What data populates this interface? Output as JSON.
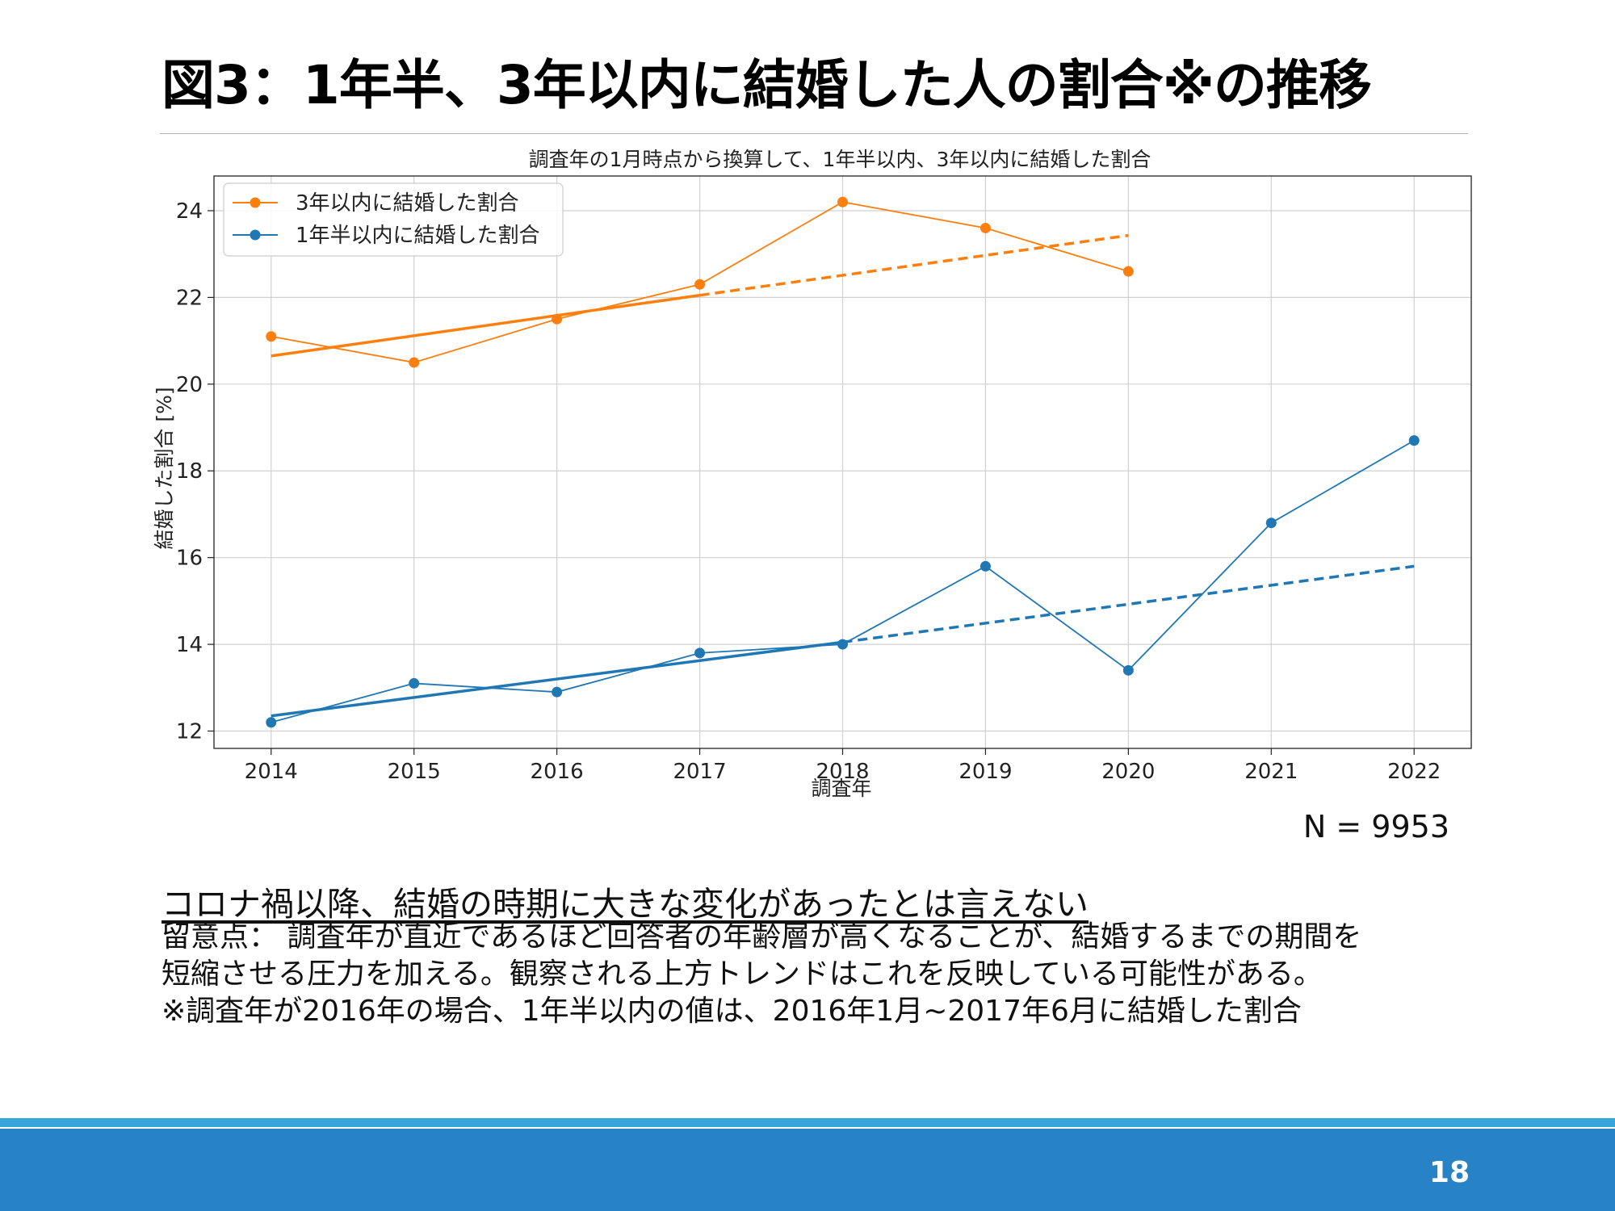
{
  "slide": {
    "title": "図3：1年半、3年以内に結婚した人の割合※の推移",
    "sample_size": "N = 9953",
    "conclusion": "コロナ禍以降、結婚の時期に大きな変化があったとは言えない",
    "notes": [
      "留意点： 調査年が直近であるほど回答者の年齢層が高くなることが、結婚するまでの期間を",
      "短縮させる圧力を加える。観察される上方トレンドはこれを反映している可能性がある。",
      "※調査年が2016年の場合、1年半以内の値は、2016年1月~2017年6月に結婚した割合"
    ],
    "page_number": "18",
    "colors": {
      "footer_bar": "#2783c5",
      "footer_line": "#35a5dc"
    }
  },
  "chart_data": {
    "type": "line",
    "title": "調査年の1月時点から換算して、1年半以内、3年以内に結婚した割合",
    "xlabel": "調査年",
    "ylabel": "結婚した割合 [%]",
    "x": [
      2014,
      2015,
      2016,
      2017,
      2018,
      2019,
      2020,
      2021,
      2022
    ],
    "x_ticks": [
      "2014",
      "2015",
      "2016",
      "2017",
      "2018",
      "2019",
      "2020",
      "2021",
      "2022"
    ],
    "xlim": [
      2013.6,
      2022.4
    ],
    "ylim": [
      11.6,
      24.8
    ],
    "y_ticks": [
      "12",
      "14",
      "16",
      "18",
      "20",
      "22",
      "24"
    ],
    "grid": true,
    "legend_position": "top-left",
    "series": [
      {
        "name": "3年以内に結婚した割合",
        "color": "#ff7f0e",
        "x": [
          2014,
          2015,
          2016,
          2017,
          2018,
          2019,
          2020
        ],
        "values": [
          21.1,
          20.5,
          21.5,
          22.3,
          24.2,
          23.6,
          22.6
        ],
        "trend_solid": [
          [
            2014,
            20.65
          ],
          [
            2017,
            22.05
          ]
        ],
        "trend_dashed": [
          [
            2017,
            22.05
          ],
          [
            2020,
            23.43
          ]
        ]
      },
      {
        "name": "1年半以内に結婚した割合",
        "color": "#1f77b4",
        "x": [
          2014,
          2015,
          2016,
          2017,
          2018,
          2019,
          2020,
          2021,
          2022
        ],
        "values": [
          12.2,
          13.1,
          12.9,
          13.8,
          14.0,
          15.8,
          13.4,
          16.8,
          18.7
        ],
        "trend_solid": [
          [
            2014,
            12.35
          ],
          [
            2018,
            14.05
          ]
        ],
        "trend_dashed": [
          [
            2018,
            14.05
          ],
          [
            2022,
            15.8
          ]
        ]
      }
    ]
  }
}
